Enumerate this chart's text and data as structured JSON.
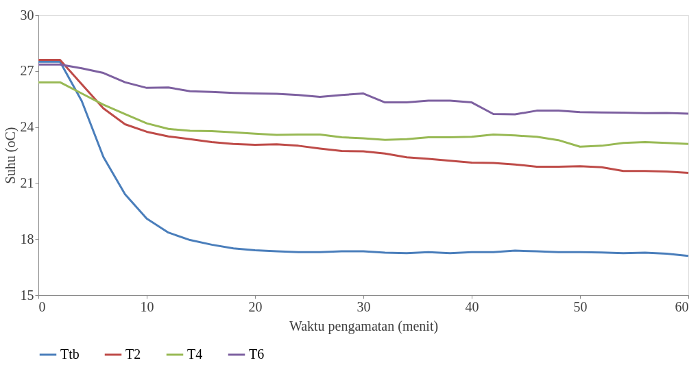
{
  "chart_data": {
    "type": "line",
    "xlabel": "Waktu pengamatan (menit)",
    "ylabel": "Suhu (oC)",
    "x": [
      0,
      2,
      4,
      6,
      8,
      10,
      12,
      14,
      16,
      18,
      20,
      22,
      24,
      26,
      28,
      30,
      32,
      34,
      36,
      38,
      40,
      42,
      44,
      46,
      48,
      50,
      52,
      54,
      56,
      58,
      60
    ],
    "xlim": [
      0,
      60
    ],
    "xticks": [
      0,
      10,
      20,
      30,
      40,
      50,
      60
    ],
    "ylim": [
      15,
      30
    ],
    "yticks": [
      15,
      18,
      21,
      24,
      27,
      30
    ],
    "grid": false,
    "legend": "bottom",
    "marker": "none",
    "line_style": "solid",
    "series": [
      {
        "name": "Ttb",
        "color": "#4a7ebb",
        "values": [
          27.5,
          27.5,
          25.4,
          22.4,
          20.4,
          19.1,
          18.35,
          17.95,
          17.7,
          17.5,
          17.4,
          17.35,
          17.3,
          17.3,
          17.35,
          17.35,
          17.27,
          17.25,
          17.3,
          17.25,
          17.3,
          17.3,
          17.38,
          17.35,
          17.3,
          17.3,
          17.28,
          17.25,
          17.27,
          17.22,
          17.1
        ]
      },
      {
        "name": "T2",
        "color": "#be4b48",
        "values": [
          27.6,
          27.6,
          26.3,
          25.0,
          24.15,
          23.75,
          23.5,
          23.35,
          23.2,
          23.1,
          23.05,
          23.08,
          23.0,
          22.85,
          22.72,
          22.7,
          22.58,
          22.38,
          22.3,
          22.2,
          22.1,
          22.08,
          22.0,
          21.88,
          21.88,
          21.9,
          21.85,
          21.65,
          21.65,
          21.62,
          21.55
        ]
      },
      {
        "name": "T4",
        "color": "#98b954",
        "values": [
          26.4,
          26.4,
          25.8,
          25.2,
          24.7,
          24.2,
          23.9,
          23.8,
          23.78,
          23.72,
          23.65,
          23.58,
          23.6,
          23.6,
          23.45,
          23.4,
          23.32,
          23.35,
          23.45,
          23.45,
          23.48,
          23.6,
          23.55,
          23.48,
          23.3,
          22.95,
          23.0,
          23.15,
          23.2,
          23.15,
          23.1
        ]
      },
      {
        "name": "T6",
        "color": "#7d60a0",
        "values": [
          27.35,
          27.35,
          27.15,
          26.9,
          26.4,
          26.1,
          26.12,
          25.92,
          25.88,
          25.83,
          25.8,
          25.78,
          25.72,
          25.62,
          25.72,
          25.8,
          25.32,
          25.32,
          25.42,
          25.42,
          25.32,
          24.7,
          24.68,
          24.88,
          24.88,
          24.8,
          24.78,
          24.77,
          24.75,
          24.76,
          24.72
        ]
      }
    ]
  }
}
